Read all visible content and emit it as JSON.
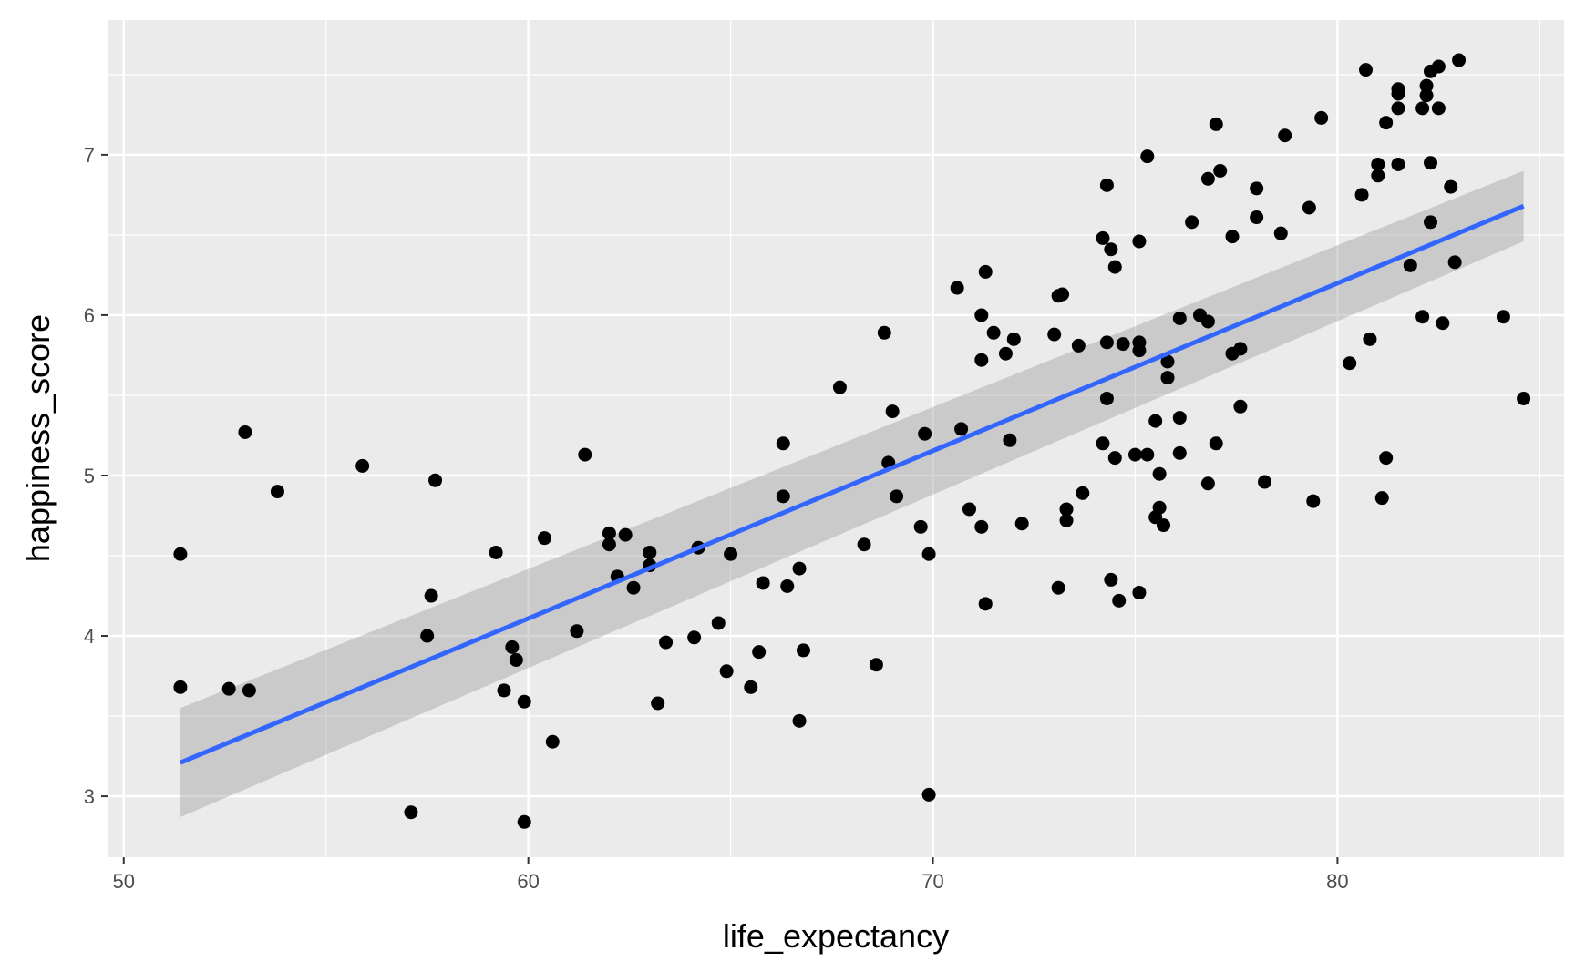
{
  "chart_data": {
    "type": "scatter",
    "title": "",
    "xlabel": "life_expectancy",
    "ylabel": "happiness_score",
    "xlim": [
      49.6,
      85.6
    ],
    "ylim": [
      2.62,
      7.84
    ],
    "x_ticks": [
      50,
      60,
      70,
      80
    ],
    "x_tick_labels": [
      "50",
      "60",
      "70",
      "80"
    ],
    "y_ticks": [
      3,
      4,
      5,
      6,
      7
    ],
    "y_tick_labels": [
      "3",
      "4",
      "5",
      "6",
      "7"
    ],
    "grid": true,
    "legend": "none",
    "points": [
      [
        51.4,
        4.51
      ],
      [
        51.4,
        3.68
      ],
      [
        52.6,
        3.67
      ],
      [
        53.0,
        5.27
      ],
      [
        53.1,
        3.66
      ],
      [
        53.8,
        4.9
      ],
      [
        55.9,
        5.06
      ],
      [
        57.1,
        2.9
      ],
      [
        57.5,
        4.0
      ],
      [
        57.6,
        4.25
      ],
      [
        57.7,
        4.97
      ],
      [
        59.2,
        4.52
      ],
      [
        59.4,
        3.66
      ],
      [
        59.6,
        3.93
      ],
      [
        59.7,
        3.85
      ],
      [
        59.9,
        2.84
      ],
      [
        59.9,
        3.59
      ],
      [
        60.4,
        4.61
      ],
      [
        60.6,
        3.34
      ],
      [
        61.2,
        4.03
      ],
      [
        61.4,
        5.13
      ],
      [
        62.0,
        4.64
      ],
      [
        62.0,
        4.57
      ],
      [
        62.2,
        4.37
      ],
      [
        62.4,
        4.63
      ],
      [
        62.6,
        4.3
      ],
      [
        63.0,
        4.52
      ],
      [
        63.0,
        4.44
      ],
      [
        63.2,
        3.58
      ],
      [
        63.4,
        3.96
      ],
      [
        64.1,
        3.99
      ],
      [
        64.2,
        4.55
      ],
      [
        64.7,
        4.08
      ],
      [
        64.9,
        3.78
      ],
      [
        65.0,
        4.51
      ],
      [
        65.5,
        3.68
      ],
      [
        65.7,
        3.9
      ],
      [
        65.8,
        4.33
      ],
      [
        66.3,
        5.2
      ],
      [
        66.3,
        4.87
      ],
      [
        66.4,
        4.31
      ],
      [
        66.7,
        3.47
      ],
      [
        66.7,
        4.42
      ],
      [
        66.8,
        3.91
      ],
      [
        67.7,
        5.55
      ],
      [
        68.3,
        4.57
      ],
      [
        68.6,
        3.82
      ],
      [
        68.8,
        5.89
      ],
      [
        68.9,
        5.08
      ],
      [
        69.0,
        5.4
      ],
      [
        69.1,
        4.87
      ],
      [
        69.7,
        4.68
      ],
      [
        69.8,
        5.26
      ],
      [
        69.9,
        3.01
      ],
      [
        69.9,
        4.51
      ],
      [
        70.6,
        6.17
      ],
      [
        70.7,
        5.29
      ],
      [
        70.9,
        4.79
      ],
      [
        71.2,
        6.0
      ],
      [
        71.2,
        5.72
      ],
      [
        71.2,
        4.68
      ],
      [
        71.3,
        6.27
      ],
      [
        71.3,
        4.2
      ],
      [
        71.5,
        5.89
      ],
      [
        71.8,
        5.76
      ],
      [
        71.9,
        5.22
      ],
      [
        72.0,
        5.85
      ],
      [
        72.2,
        4.7
      ],
      [
        73.0,
        5.88
      ],
      [
        73.1,
        6.12
      ],
      [
        73.1,
        4.3
      ],
      [
        73.2,
        6.13
      ],
      [
        73.3,
        4.72
      ],
      [
        73.3,
        4.79
      ],
      [
        73.6,
        5.81
      ],
      [
        73.7,
        4.89
      ],
      [
        74.2,
        6.48
      ],
      [
        74.2,
        5.2
      ],
      [
        74.3,
        5.83
      ],
      [
        74.3,
        5.48
      ],
      [
        74.3,
        6.81
      ],
      [
        74.4,
        6.41
      ],
      [
        74.4,
        4.35
      ],
      [
        74.5,
        5.11
      ],
      [
        74.5,
        6.3
      ],
      [
        74.6,
        4.22
      ],
      [
        74.7,
        5.82
      ],
      [
        75.0,
        5.13
      ],
      [
        75.1,
        6.46
      ],
      [
        75.1,
        4.27
      ],
      [
        75.1,
        5.83
      ],
      [
        75.1,
        5.78
      ],
      [
        75.3,
        6.99
      ],
      [
        75.3,
        5.13
      ],
      [
        75.5,
        5.34
      ],
      [
        75.5,
        4.74
      ],
      [
        75.6,
        5.01
      ],
      [
        75.6,
        4.8
      ],
      [
        75.7,
        4.69
      ],
      [
        75.8,
        5.71
      ],
      [
        75.8,
        5.61
      ],
      [
        76.1,
        5.98
      ],
      [
        76.1,
        5.36
      ],
      [
        76.1,
        5.14
      ],
      [
        76.4,
        6.58
      ],
      [
        76.6,
        6.0
      ],
      [
        76.8,
        5.96
      ],
      [
        76.8,
        4.95
      ],
      [
        76.8,
        6.85
      ],
      [
        77.0,
        7.19
      ],
      [
        77.0,
        5.2
      ],
      [
        77.1,
        6.9
      ],
      [
        77.4,
        5.76
      ],
      [
        77.4,
        6.49
      ],
      [
        77.6,
        5.79
      ],
      [
        77.6,
        5.43
      ],
      [
        78.0,
        6.79
      ],
      [
        78.0,
        6.61
      ],
      [
        78.2,
        4.96
      ],
      [
        78.6,
        6.51
      ],
      [
        78.7,
        7.12
      ],
      [
        79.3,
        6.67
      ],
      [
        79.4,
        4.84
      ],
      [
        79.6,
        7.23
      ],
      [
        80.3,
        5.7
      ],
      [
        80.6,
        6.75
      ],
      [
        80.7,
        7.53
      ],
      [
        80.8,
        5.85
      ],
      [
        81.0,
        6.94
      ],
      [
        81.0,
        6.87
      ],
      [
        81.1,
        4.86
      ],
      [
        81.2,
        5.11
      ],
      [
        81.2,
        7.2
      ],
      [
        81.5,
        7.29
      ],
      [
        81.5,
        6.94
      ],
      [
        81.5,
        7.41
      ],
      [
        81.5,
        7.38
      ],
      [
        81.8,
        6.31
      ],
      [
        82.1,
        7.29
      ],
      [
        82.1,
        5.99
      ],
      [
        82.2,
        7.43
      ],
      [
        82.2,
        7.37
      ],
      [
        82.3,
        6.95
      ],
      [
        82.3,
        6.58
      ],
      [
        82.3,
        7.52
      ],
      [
        82.5,
        7.29
      ],
      [
        82.5,
        7.55
      ],
      [
        82.6,
        5.95
      ],
      [
        82.8,
        6.8
      ],
      [
        82.9,
        6.33
      ],
      [
        83.0,
        7.59
      ],
      [
        84.1,
        5.99
      ],
      [
        84.6,
        5.48
      ]
    ],
    "smooth": {
      "method": "lm",
      "x": [
        51.4,
        84.6
      ],
      "y": [
        3.21,
        6.68
      ],
      "ci_lower": [
        2.87,
        6.46
      ],
      "ci_upper": [
        3.55,
        6.9
      ]
    },
    "colors": {
      "panel_background": "#ebebeb",
      "grid_line": "#ffffff",
      "point": "#000000",
      "line": "#3366ff",
      "ribbon": "#999999",
      "tick_label": "#4d4d4d",
      "axis_title": "#000000"
    }
  }
}
